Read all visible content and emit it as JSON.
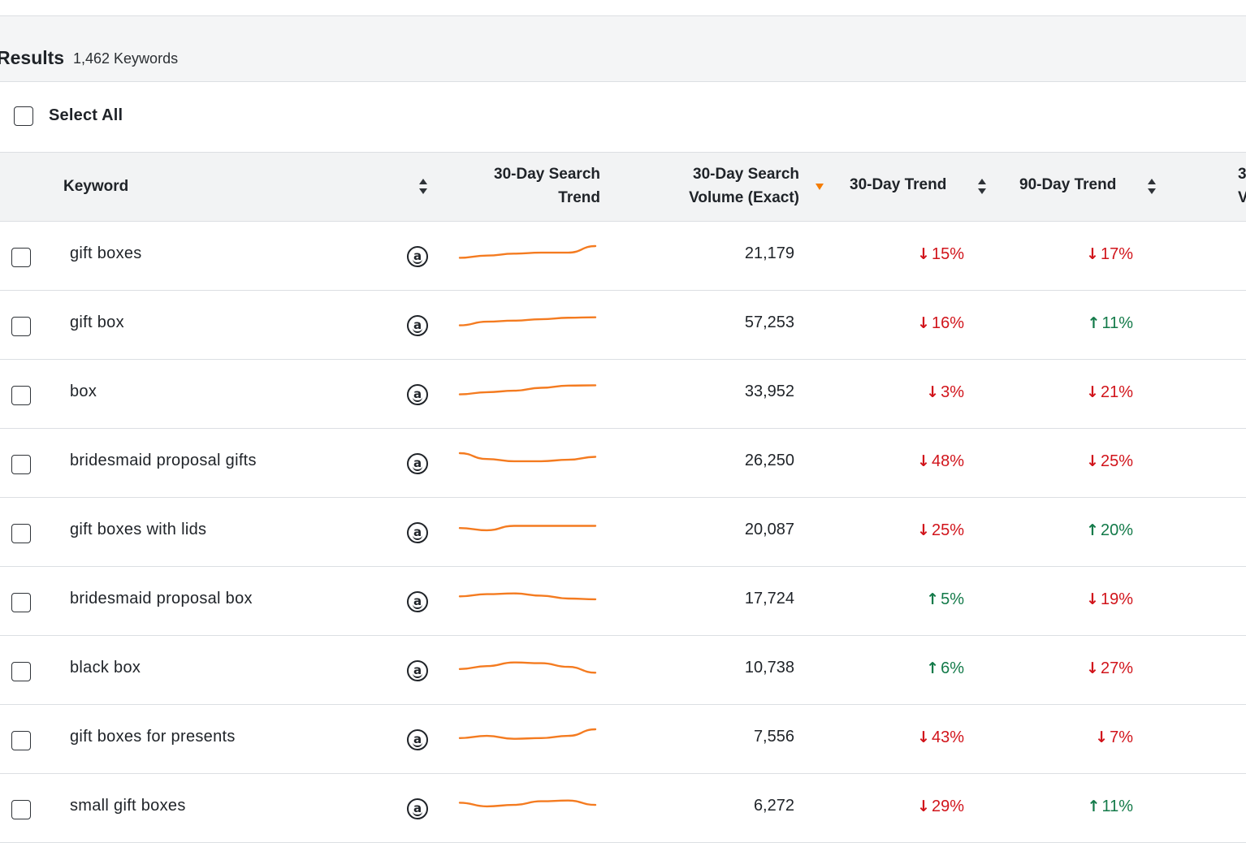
{
  "results": {
    "title": "Results",
    "count": "1,462 Keywords"
  },
  "select_all": {
    "label": "Select All"
  },
  "columns": {
    "keyword": "Keyword",
    "search_trend_line1": "30-Day Search",
    "search_trend_line2": "Trend",
    "volume_line1": "30-Day Search",
    "volume_line2": "Volume (Exact)",
    "trend30": "30-Day Trend",
    "trend90": "90-Day Trend",
    "next_col_partial": "3",
    "next_col_partial2": "V"
  },
  "colors": {
    "spark": "#f47b20",
    "up": "#137a49",
    "down": "#d1141b",
    "sort_active": "#f57c00"
  },
  "rows": [
    {
      "keyword": "gift boxes",
      "volume": "21,179",
      "trend30": {
        "dir": "down",
        "text": "15%"
      },
      "trend90": {
        "dir": "down",
        "text": "17%"
      },
      "spark": [
        0.2,
        0.35,
        0.48,
        0.55,
        0.55,
        1.0
      ]
    },
    {
      "keyword": "gift box",
      "volume": "57,253",
      "trend30": {
        "dir": "down",
        "text": "16%"
      },
      "trend90": {
        "dir": "up",
        "text": "11%"
      },
      "spark": [
        0.3,
        0.55,
        0.62,
        0.72,
        0.82,
        0.85
      ]
    },
    {
      "keyword": "box",
      "volume": "33,952",
      "trend30": {
        "dir": "down",
        "text": "3%"
      },
      "trend90": {
        "dir": "down",
        "text": "21%"
      },
      "spark": [
        0.3,
        0.45,
        0.55,
        0.75,
        0.9,
        0.92
      ]
    },
    {
      "keyword": "bridesmaid proposal gifts",
      "volume": "26,250",
      "trend30": {
        "dir": "down",
        "text": "48%"
      },
      "trend90": {
        "dir": "down",
        "text": "25%"
      },
      "spark": [
        1.0,
        0.6,
        0.45,
        0.45,
        0.55,
        0.75
      ]
    },
    {
      "keyword": "gift boxes with lids",
      "volume": "20,087",
      "trend30": {
        "dir": "down",
        "text": "25%"
      },
      "trend90": {
        "dir": "up",
        "text": "20%"
      },
      "spark": [
        0.6,
        0.45,
        0.75,
        0.75,
        0.75,
        0.75
      ]
    },
    {
      "keyword": "bridesmaid proposal box",
      "volume": "17,724",
      "trend30": {
        "dir": "up",
        "text": "5%"
      },
      "trend90": {
        "dir": "down",
        "text": "19%"
      },
      "spark": [
        0.65,
        0.8,
        0.85,
        0.7,
        0.5,
        0.45
      ]
    },
    {
      "keyword": "black box",
      "volume": "10,738",
      "trend30": {
        "dir": "up",
        "text": "6%"
      },
      "trend90": {
        "dir": "down",
        "text": "27%"
      },
      "spark": [
        0.4,
        0.6,
        0.85,
        0.8,
        0.55,
        0.15
      ]
    },
    {
      "keyword": "gift boxes for presents",
      "volume": "7,556",
      "trend30": {
        "dir": "down",
        "text": "43%"
      },
      "trend90": {
        "dir": "down",
        "text": "7%"
      },
      "spark": [
        0.4,
        0.55,
        0.35,
        0.4,
        0.55,
        1.0
      ]
    },
    {
      "keyword": "small gift boxes",
      "volume": "6,272",
      "trend30": {
        "dir": "down",
        "text": "29%"
      },
      "trend90": {
        "dir": "up",
        "text": "11%"
      },
      "spark": [
        0.7,
        0.45,
        0.55,
        0.8,
        0.85,
        0.55
      ]
    }
  ]
}
